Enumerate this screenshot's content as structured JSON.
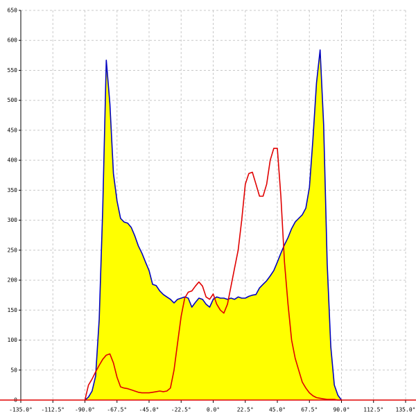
{
  "chart_data": {
    "type": "area",
    "x": [
      -90,
      -87.5,
      -85,
      -82.5,
      -80,
      -77.5,
      -75,
      -72.5,
      -70,
      -67.5,
      -65,
      -62.5,
      -60,
      -57.5,
      -55,
      -52.5,
      -50,
      -47.5,
      -45,
      -42.5,
      -40,
      -37.5,
      -35,
      -32.5,
      -30,
      -27.5,
      -25,
      -22.5,
      -20,
      -17.5,
      -15,
      -12.5,
      -10,
      -7.5,
      -5,
      -2.5,
      0,
      2.5,
      5,
      7.5,
      10,
      12.5,
      15,
      17.5,
      20,
      22.5,
      25,
      27.5,
      30,
      32.5,
      35,
      37.5,
      40,
      42.5,
      45,
      47.5,
      50,
      52.5,
      55,
      57.5,
      60,
      62.5,
      65,
      67.5,
      70,
      72.5,
      75,
      77.5,
      80,
      82.5,
      85,
      87.5,
      90
    ],
    "series": [
      {
        "color": "#0000c0",
        "fill": "#ffff00",
        "values": [
          0,
          5,
          15,
          40,
          135,
          320,
          567,
          494,
          378,
          332,
          303,
          297,
          295,
          288,
          274,
          257,
          245,
          230,
          216,
          193,
          191,
          182,
          176,
          172,
          168,
          162,
          168,
          170,
          172,
          170,
          155,
          163,
          170,
          168,
          160,
          155,
          168,
          172,
          170,
          170,
          168,
          170,
          168,
          172,
          170,
          170,
          173,
          175,
          176,
          187,
          193,
          199,
          207,
          216,
          230,
          245,
          259,
          271,
          286,
          297,
          303,
          309,
          320,
          355,
          436,
          529,
          584,
          459,
          228,
          89,
          25,
          8,
          0
        ]
      },
      {
        "color": "#e00000",
        "values": [
          0,
          25,
          35,
          47,
          58,
          68,
          75,
          77,
          62,
          38,
          22,
          20,
          19,
          17,
          15,
          13,
          12,
          12,
          12,
          13,
          14,
          15,
          14,
          15,
          20,
          50,
          95,
          140,
          170,
          180,
          182,
          190,
          197,
          190,
          172,
          168,
          177,
          160,
          150,
          145,
          160,
          190,
          220,
          250,
          300,
          360,
          378,
          380,
          360,
          340,
          340,
          360,
          400,
          420,
          420,
          340,
          230,
          160,
          100,
          70,
          50,
          30,
          20,
          12,
          7,
          4,
          3,
          2,
          1,
          1,
          1,
          0,
          0
        ]
      }
    ],
    "xlim": [
      -135,
      135
    ],
    "xticks": [
      {
        "value": -135,
        "label": "-135.0°"
      },
      {
        "value": -112.5,
        "label": "-112.5°"
      },
      {
        "value": -90,
        "label": "-90.0°"
      },
      {
        "value": -67.5,
        "label": "-67.5°"
      },
      {
        "value": -45,
        "label": "-45.0°"
      },
      {
        "value": -22.5,
        "label": "-22.5°"
      },
      {
        "value": 0,
        "label": "0.0°"
      },
      {
        "value": 22.5,
        "label": "22.5°"
      },
      {
        "value": 45,
        "label": "45.0°"
      },
      {
        "value": 67.5,
        "label": "67.5°"
      },
      {
        "value": 90,
        "label": "90.0°"
      },
      {
        "value": 112.5,
        "label": "112.5°"
      },
      {
        "value": 135,
        "label": "135.0°"
      }
    ],
    "ylim": [
      0,
      650
    ],
    "yticks": [
      0,
      50,
      100,
      150,
      200,
      250,
      300,
      350,
      400,
      450,
      500,
      550,
      600,
      650
    ],
    "grid": true,
    "axis_color": "#e00000"
  }
}
